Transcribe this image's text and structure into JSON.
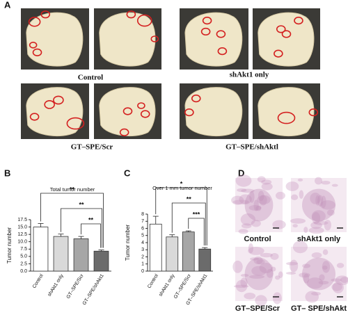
{
  "figure": {
    "panel_a": {
      "label": "A",
      "groups": [
        {
          "label": "Control"
        },
        {
          "label": "shAkt1 only"
        },
        {
          "label": "GT–SPE/Scr"
        },
        {
          "label": "GT–SPE/shAktl"
        }
      ]
    },
    "panel_d": {
      "label": "D",
      "images": [
        {
          "label": "Control"
        },
        {
          "label": "shAkt1 only"
        },
        {
          "label": "GT–SPE/Scr"
        },
        {
          "label": "GT– SPE/shAkt"
        }
      ]
    }
  },
  "chart_data": [
    {
      "type": "bar",
      "panel_label": "B",
      "title": "Total tumor number",
      "y_label": "Tumor number",
      "categories": [
        "Control",
        "shAkt1 only",
        "GT–SPE/Scr",
        "GT–SPE/shAkt1"
      ],
      "values": [
        15,
        11.8,
        11,
        6.8
      ],
      "errors": [
        1.2,
        0.8,
        0.8,
        0.4
      ],
      "colors": [
        "#ffffff",
        "#d9d9d9",
        "#a6a6a6",
        "#6b6b6b"
      ],
      "annotations": [
        "**",
        "**",
        "**"
      ],
      "ylim": [
        0,
        17.5
      ],
      "yticks": [
        {
          "value": 0,
          "label": "0.0"
        },
        {
          "value": 2.5,
          "label": "2.5"
        },
        {
          "value": 5,
          "label": "5.0"
        },
        {
          "value": 7.5,
          "label": "7.5"
        },
        {
          "value": 10,
          "label": "10.0"
        },
        {
          "value": 12.5,
          "label": "12.5"
        },
        {
          "value": 15,
          "label": "15.0"
        },
        {
          "value": 17.5,
          "label": "17.5"
        }
      ]
    },
    {
      "type": "bar",
      "panel_label": "C",
      "title": "Over 1 mm tumor number",
      "y_label": "Tumor number",
      "categories": [
        "Control",
        "shAkt1 only",
        "GT–SPE/Scr",
        "GT–SPE/shAkt1"
      ],
      "values": [
        6.6,
        4.8,
        5.5,
        3.1
      ],
      "errors": [
        1.1,
        0.3,
        0.15,
        0.2
      ],
      "colors": [
        "#ffffff",
        "#d9d9d9",
        "#a6a6a6",
        "#6b6b6b"
      ],
      "annotations": [
        "*",
        "**",
        "***"
      ],
      "ylim": [
        0,
        8
      ],
      "yticks": [
        0,
        1,
        2,
        3,
        4,
        5,
        6,
        7,
        8
      ]
    }
  ]
}
